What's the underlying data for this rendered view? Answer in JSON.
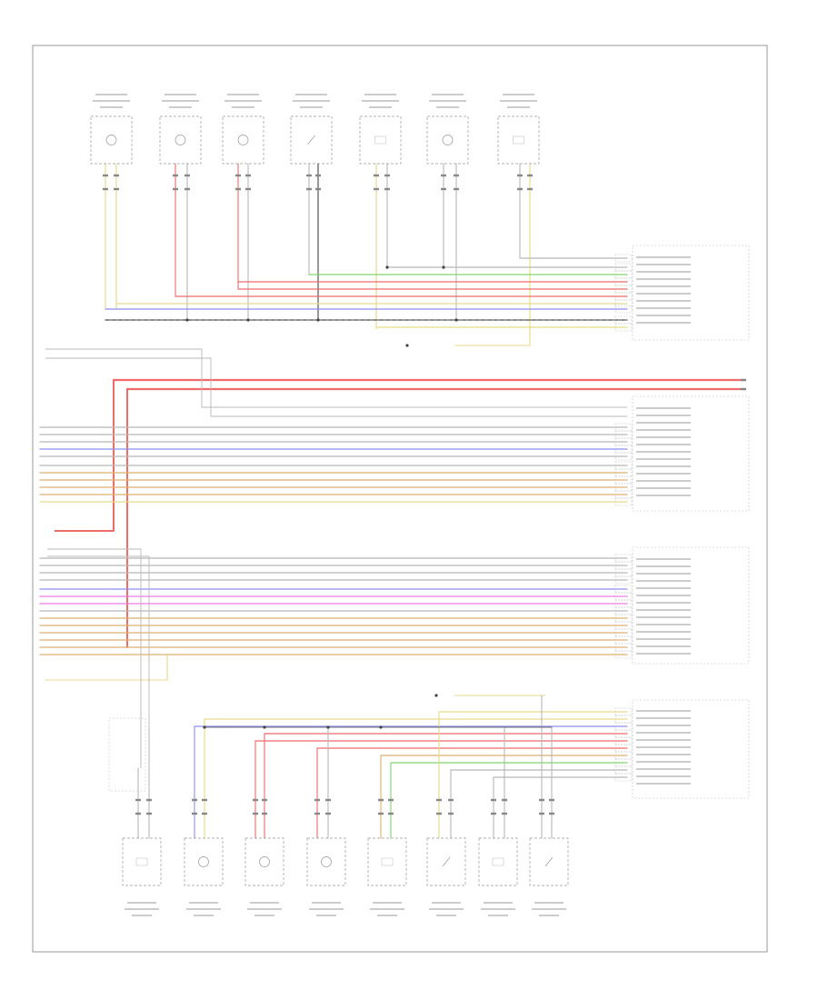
{
  "corner_label": "",
  "colors": {
    "yellow": "#e8d98a",
    "red": "#f06a6a",
    "blue": "#8a8ff0",
    "green": "#7fd66b",
    "gray": "#b8b8b8",
    "magenta": "#f07ae8",
    "orange": "#e0b070",
    "black": "#444444"
  }
}
